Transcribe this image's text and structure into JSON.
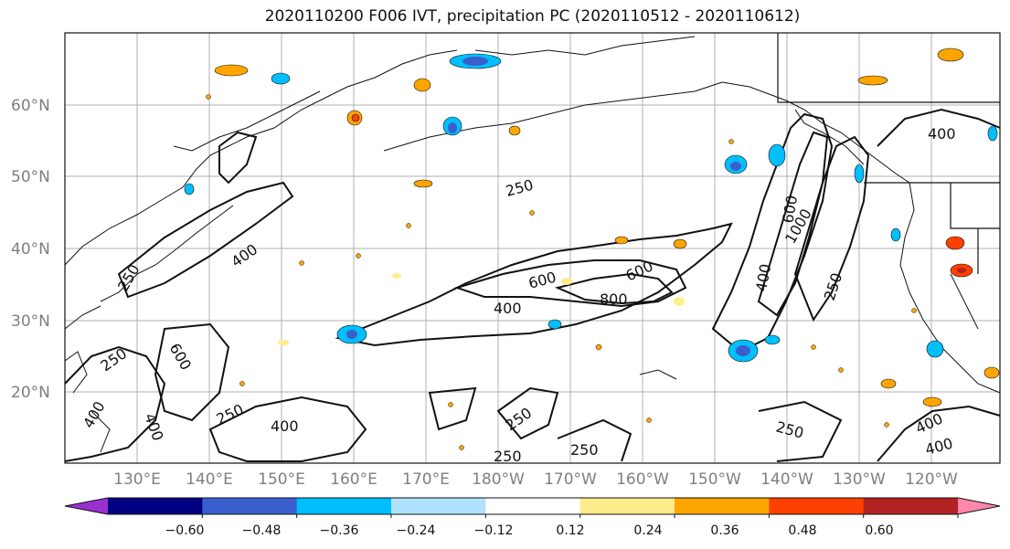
{
  "title": "2020110200 F006 IVT, precipitation PC (2020110512 - 2020110612)",
  "map": {
    "lat_ticks": [
      "60°N",
      "50°N",
      "40°N",
      "30°N",
      "20°N"
    ],
    "lon_ticks": [
      "130°E",
      "140°E",
      "150°E",
      "160°E",
      "170°E",
      "180°W",
      "170°W",
      "160°W",
      "150°W",
      "140°W",
      "130°W",
      "120°W"
    ],
    "contour_labels": [
      "250",
      "400",
      "600",
      "800",
      "600",
      "400",
      "250",
      "600",
      "1000",
      "400",
      "250",
      "400",
      "250",
      "600",
      "400",
      "400",
      "250",
      "400",
      "250",
      "250",
      "250",
      "250",
      "400",
      "400"
    ]
  },
  "colorbar": {
    "ticks": [
      "−0.60",
      "−0.48",
      "−0.36",
      "−0.24",
      "−0.12",
      "0.12",
      "0.24",
      "0.36",
      "0.48",
      "0.60"
    ],
    "colors": [
      "#9b30d0",
      "#000080",
      "#3a5fcd",
      "#00bfff",
      "#b0e2ff",
      "#ffffff",
      "#ffec8b",
      "#ffa500",
      "#ff4000",
      "#b22222",
      "#ff88aa"
    ]
  }
}
